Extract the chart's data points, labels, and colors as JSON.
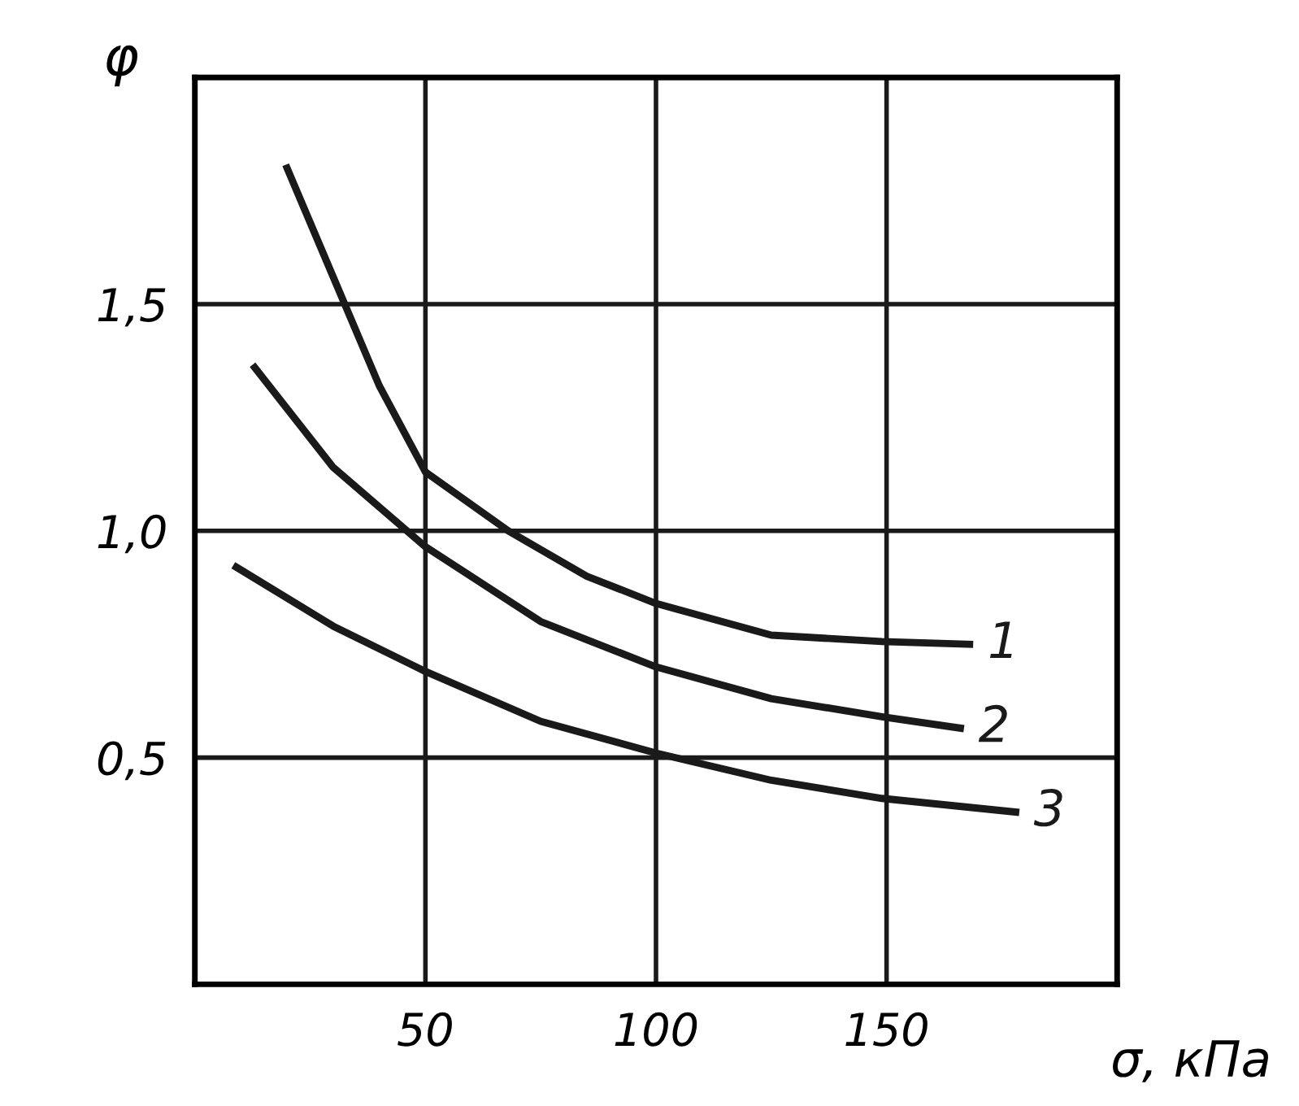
{
  "chart_data": {
    "type": "line",
    "xlabel": "σ, кПа",
    "ylabel": "φ",
    "xlim": [
      0,
      200
    ],
    "ylim": [
      0,
      2.0
    ],
    "xticks": [
      {
        "value": 0,
        "label": null
      },
      50,
      100,
      150,
      {
        "value": 200,
        "label": null
      }
    ],
    "yticks": [
      {
        "value": 0,
        "label": null
      },
      {
        "value": 0.5,
        "label": "0,5"
      },
      {
        "value": 1.0,
        "label": "1,0"
      },
      {
        "value": 1.5,
        "label": "1,5"
      },
      {
        "value": 2.0,
        "label": null
      }
    ],
    "grid": true,
    "legend": false,
    "marker": "none",
    "line_style": "solid",
    "series": [
      {
        "name": "1",
        "color": "#1a1a1a",
        "x": [
          20,
          30,
          40,
          50,
          68,
          85,
          100,
          125,
          149,
          168
        ],
        "values": [
          1.8,
          1.56,
          1.32,
          1.13,
          1.0,
          0.9,
          0.84,
          0.77,
          0.756,
          0.75
        ]
      },
      {
        "name": "2",
        "color": "#1a1a1a",
        "x": [
          13,
          30,
          50,
          75,
          100,
          125,
          149,
          166
        ],
        "values": [
          1.36,
          1.14,
          0.965,
          0.8,
          0.7,
          0.63,
          0.59,
          0.565
        ]
      },
      {
        "name": "3",
        "color": "#1a1a1a",
        "x": [
          9,
          30,
          50,
          75,
          100,
          125,
          149,
          178
        ],
        "values": [
          0.92,
          0.79,
          0.69,
          0.58,
          0.51,
          0.45,
          0.41,
          0.38
        ]
      }
    ]
  }
}
